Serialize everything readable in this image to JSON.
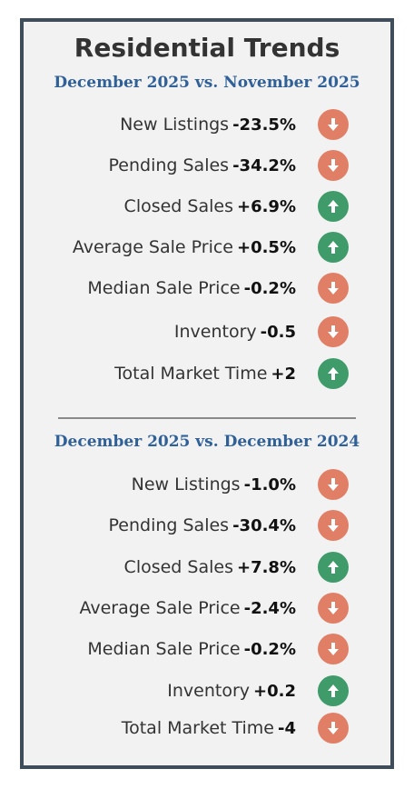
{
  "title": "Residential Trends",
  "colors": {
    "up": "#3f9b6a",
    "down": "#e07f66",
    "subtitle": "#2f6098",
    "border": "#3f4c59"
  },
  "sections": [
    {
      "subtitle": "December 2025 vs. November 2025",
      "rows": [
        {
          "label": "New Listings",
          "value": "-23.5%",
          "direction": "down",
          "icon": "down-arrow-icon"
        },
        {
          "label": "Pending Sales",
          "value": "-34.2%",
          "direction": "down",
          "icon": "down-arrow-icon"
        },
        {
          "label": "Closed Sales",
          "value": "+6.9%",
          "direction": "up",
          "icon": "up-arrow-icon"
        },
        {
          "label": "Average Sale Price",
          "value": "+0.5%",
          "direction": "up",
          "icon": "up-arrow-icon"
        },
        {
          "label": "Median Sale Price",
          "value": "-0.2%",
          "direction": "down",
          "icon": "down-arrow-icon"
        },
        {
          "label": "Inventory",
          "value": "-0.5",
          "direction": "down",
          "icon": "down-arrow-icon"
        },
        {
          "label": "Total Market Time",
          "value": "+2",
          "direction": "up",
          "icon": "up-arrow-icon"
        }
      ]
    },
    {
      "subtitle": "December 2025 vs. December 2024",
      "rows": [
        {
          "label": "New Listings",
          "value": "-1.0%",
          "direction": "down",
          "icon": "down-arrow-icon"
        },
        {
          "label": "Pending Sales",
          "value": "-30.4%",
          "direction": "down",
          "icon": "down-arrow-icon"
        },
        {
          "label": "Closed Sales",
          "value": "+7.8%",
          "direction": "up",
          "icon": "up-arrow-icon"
        },
        {
          "label": "Average Sale Price",
          "value": "-2.4%",
          "direction": "down",
          "icon": "down-arrow-icon"
        },
        {
          "label": "Median Sale Price",
          "value": "-0.2%",
          "direction": "down",
          "icon": "down-arrow-icon"
        },
        {
          "label": "Inventory",
          "value": "+0.2",
          "direction": "up",
          "icon": "up-arrow-icon"
        },
        {
          "label": "Total Market Time",
          "value": "-4",
          "direction": "down",
          "icon": "down-arrow-icon"
        }
      ]
    }
  ]
}
